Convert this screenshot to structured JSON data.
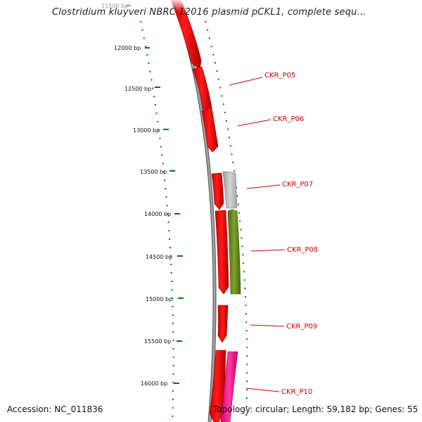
{
  "title": "Clostridium kluyveri NBRC 12016 plasmid pCKL1, complete sequ...",
  "accession": "Accession: NC_011836",
  "footer": "Topology: circular; Length: 59,182 bp; Genes: 55",
  "colors": {
    "strand_forward": "#ff0000",
    "strand_reverse_grey": "#bbbbbb",
    "strand_reverse_olive": "#6b8e23",
    "strand_reverse_pink": "#ff1493",
    "ticks": "#007700",
    "label_line": "#cc0000",
    "backbone": "#888888"
  },
  "ticks": [
    {
      "label": "11500 bp",
      "y": 8,
      "faded": true
    },
    {
      "label": "12000 bp"
    },
    {
      "label": "12500 bp"
    },
    {
      "label": "13000 bp"
    },
    {
      "label": "13500 bp"
    },
    {
      "label": "14000 bp"
    },
    {
      "label": "14500 bp"
    },
    {
      "label": "15000 bp"
    },
    {
      "label": "15500 bp"
    },
    {
      "label": "16000 bp"
    }
  ],
  "genes": [
    {
      "label": "CKR_P05"
    },
    {
      "label": "CKR_P06"
    },
    {
      "label": "CKR_P07"
    },
    {
      "label": "CKR_P08"
    },
    {
      "label": "CKR_P09"
    },
    {
      "label": "CKR_P10"
    }
  ]
}
